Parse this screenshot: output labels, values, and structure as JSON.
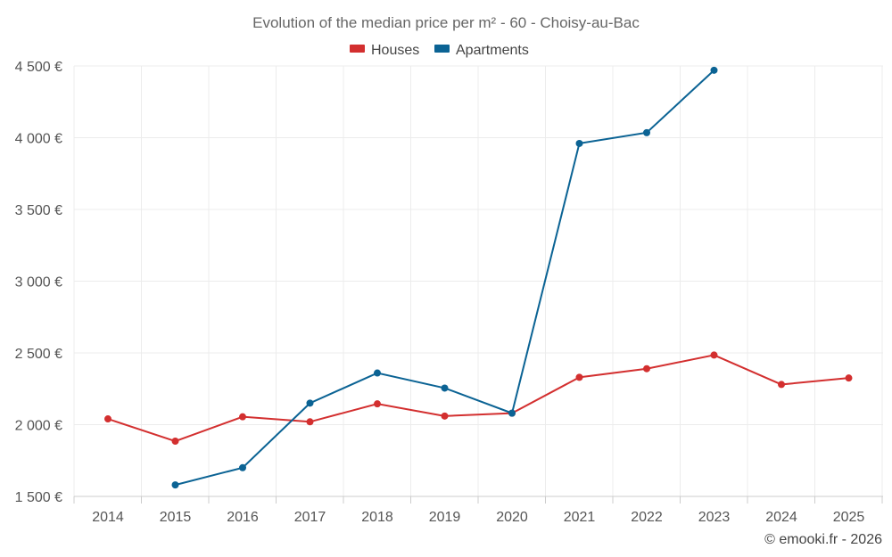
{
  "chart_data": {
    "type": "line",
    "title": "Evolution of the median price per m² - 60 - Choisy-au-Bac",
    "categories": [
      "2014",
      "2015",
      "2016",
      "2017",
      "2018",
      "2019",
      "2020",
      "2021",
      "2022",
      "2023",
      "2024",
      "2025"
    ],
    "y_ticks": [
      1500,
      2000,
      2500,
      3000,
      3500,
      4000,
      4500
    ],
    "y_tick_labels": [
      "1 500 €",
      "2 000 €",
      "2 500 €",
      "3 000 €",
      "3 500 €",
      "4 000 €",
      "4 500 €"
    ],
    "ylim": [
      1500,
      4500
    ],
    "legend_position": "top-center",
    "grid": true,
    "series": [
      {
        "name": "Houses",
        "color": "#d32f2f",
        "values": [
          2040,
          1885,
          2055,
          2020,
          2145,
          2060,
          2080,
          2330,
          2390,
          2485,
          2280,
          2325
        ]
      },
      {
        "name": "Apartments",
        "color": "#0b6394",
        "values": [
          null,
          1580,
          1700,
          2150,
          2360,
          2255,
          2080,
          3960,
          4035,
          4470,
          null,
          null
        ]
      }
    ]
  },
  "credit": "© emooki.fr - 2026"
}
